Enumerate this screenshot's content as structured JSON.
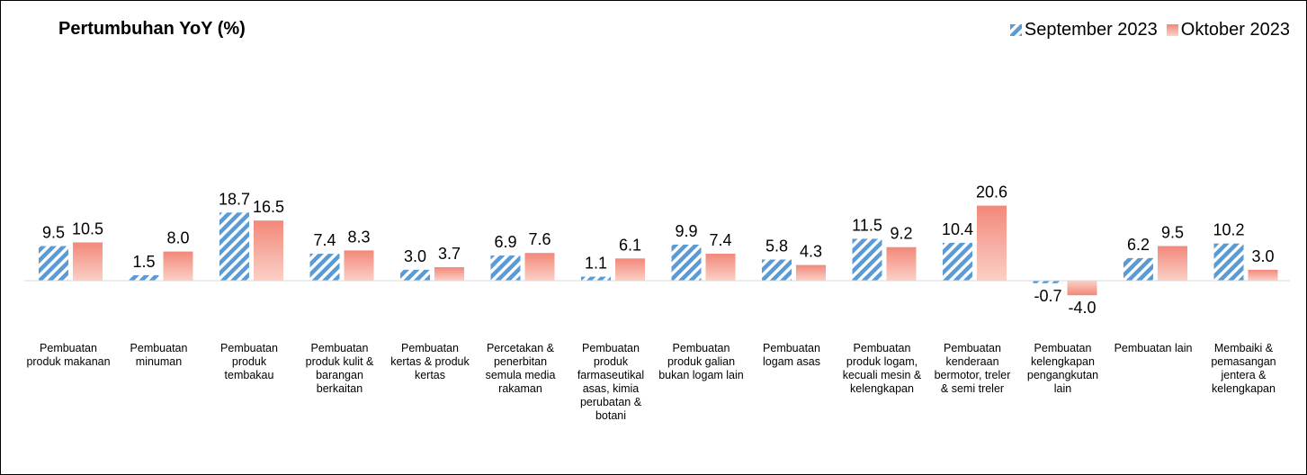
{
  "chart_data": {
    "type": "bar",
    "title": "Pertumbuhan YoY (%)",
    "categories": [
      "Pembuatan produk makanan",
      "Pembuatan minuman",
      "Pembuatan produk tembakau",
      "Pembuatan produk kulit & barangan berkaitan",
      "Pembuatan kertas & produk kertas",
      "Percetakan & penerbitan semula media rakaman",
      "Pembuatan produk farmaseutikal asas, kimia perubatan & botani",
      "Pembuatan produk galian bukan logam lain",
      "Pembuatan logam asas",
      "Pembuatan produk logam, kecuali mesin & kelengkapan",
      "Pembuatan kenderaan bermotor, treler & semi treler",
      "Pembuatan kelengkapan pengangkutan lain",
      "Pembuatan lain",
      "Membaiki & pemasangan jentera & kelengkapan"
    ],
    "series": [
      {
        "name": "September 2023",
        "values": [
          9.5,
          1.5,
          18.7,
          7.4,
          3.0,
          6.9,
          1.1,
          9.9,
          5.8,
          11.5,
          10.4,
          -0.7,
          6.2,
          10.2
        ],
        "labels": [
          "9.5",
          "1.5",
          "18.7",
          "7.4",
          "3.0",
          "6.9",
          "1.1",
          "9.9",
          "5.8",
          "11.5",
          "10.4",
          "-0.7",
          "6.2",
          "10.2"
        ],
        "color": "#5b9bd5",
        "pattern": "diagonal-stripes"
      },
      {
        "name": "Oktober 2023",
        "values": [
          10.5,
          8.0,
          16.5,
          8.3,
          3.7,
          7.6,
          6.1,
          7.4,
          4.3,
          9.2,
          20.6,
          -4.0,
          9.5,
          3.0
        ],
        "labels": [
          "10.5",
          "8.0",
          "16.5",
          "8.3",
          "3.7",
          "7.6",
          "6.1",
          "7.4",
          "4.3",
          "9.2",
          "20.6",
          "-4.0",
          "9.5",
          "3.0"
        ],
        "color": "#f4a090",
        "pattern": "gradient"
      }
    ],
    "grid": false,
    "legend": "top-right"
  }
}
